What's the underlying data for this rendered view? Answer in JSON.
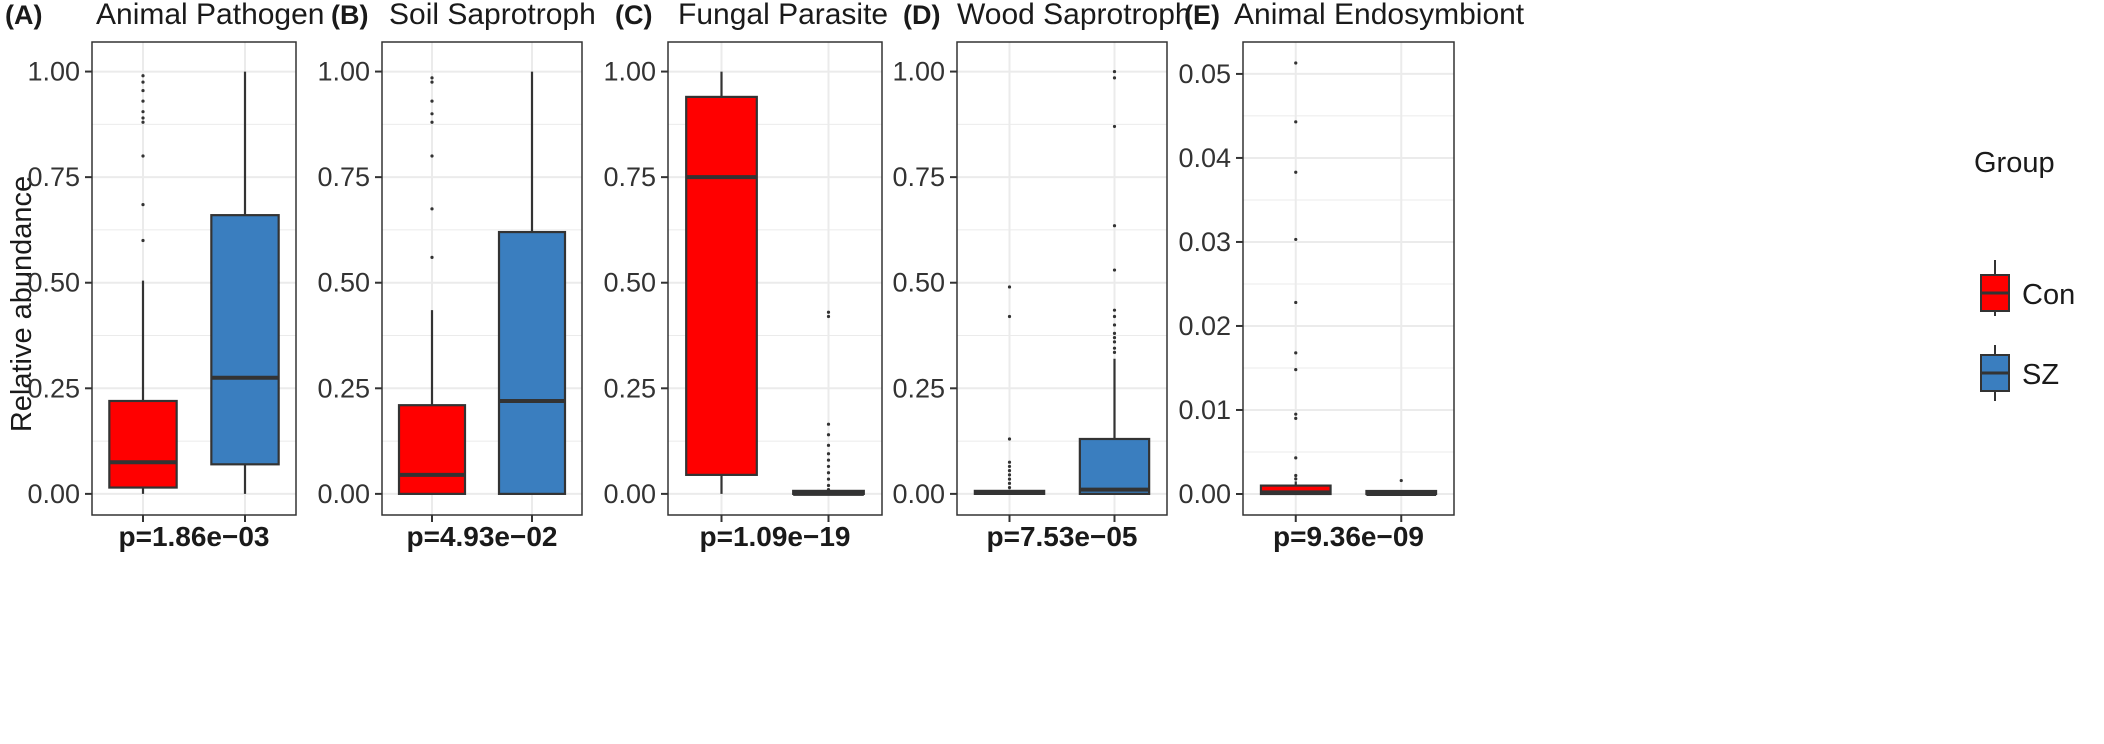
{
  "colors": {
    "con": "#ff0000",
    "sz": "#3a7ebf",
    "outline": "#333333",
    "grid": "#ebebeb",
    "frame": "#333333"
  },
  "y_axis_label": "Relative abundance",
  "legend": {
    "title": "Group",
    "items": [
      "Con",
      "SZ"
    ]
  },
  "chart_data": [
    {
      "type": "box",
      "tag": "(A)",
      "title": "Animal Pathogen",
      "pvalue": "p=1.86e−03",
      "ylim": [
        -0.05,
        1.07
      ],
      "ticks": [
        0,
        0.25,
        0.5,
        0.75,
        1.0
      ],
      "tick_labels": [
        "0.00",
        "0.25",
        "0.50",
        "0.75",
        "1.00"
      ],
      "groups": [
        {
          "name": "Con",
          "q1": 0.015,
          "median": 0.075,
          "q3": 0.22,
          "whisker_low": 0.0,
          "whisker_high": 0.505,
          "outliers": [
            0.6,
            0.685,
            0.8,
            0.88,
            0.89,
            0.905,
            0.93,
            0.955,
            0.975,
            0.99
          ]
        },
        {
          "name": "SZ",
          "q1": 0.07,
          "median": 0.275,
          "q3": 0.66,
          "whisker_low": 0.0,
          "whisker_high": 1.0,
          "outliers": []
        }
      ]
    },
    {
      "type": "box",
      "tag": "(B)",
      "title": "Soil Saprotroph",
      "pvalue": "p=4.93e−02",
      "ylim": [
        -0.05,
        1.07
      ],
      "ticks": [
        0,
        0.25,
        0.5,
        0.75,
        1.0
      ],
      "tick_labels": [
        "0.00",
        "0.25",
        "0.50",
        "0.75",
        "1.00"
      ],
      "groups": [
        {
          "name": "Con",
          "q1": 0.0,
          "median": 0.045,
          "q3": 0.21,
          "whisker_low": 0.0,
          "whisker_high": 0.435,
          "outliers": [
            0.56,
            0.675,
            0.8,
            0.88,
            0.9,
            0.93,
            0.975,
            0.985
          ]
        },
        {
          "name": "SZ",
          "q1": 0.0,
          "median": 0.22,
          "q3": 0.62,
          "whisker_low": 0.0,
          "whisker_high": 1.0,
          "outliers": []
        }
      ]
    },
    {
      "type": "box",
      "tag": "(C)",
      "title": "Fungal Parasite",
      "pvalue": "p=1.09e−19",
      "ylim": [
        -0.05,
        1.07
      ],
      "ticks": [
        0,
        0.25,
        0.5,
        0.75,
        1.0
      ],
      "tick_labels": [
        "0.00",
        "0.25",
        "0.50",
        "0.75",
        "1.00"
      ],
      "groups": [
        {
          "name": "Con",
          "q1": 0.045,
          "median": 0.75,
          "q3": 0.94,
          "whisker_low": 0.0,
          "whisker_high": 1.0,
          "outliers": []
        },
        {
          "name": "SZ",
          "q1": 0.0,
          "median": 0.0,
          "q3": 0.002,
          "whisker_low": 0.0,
          "whisker_high": 0.004,
          "outliers": [
            0.01,
            0.02,
            0.035,
            0.05,
            0.065,
            0.08,
            0.095,
            0.115,
            0.14,
            0.165,
            0.42,
            0.43
          ]
        }
      ]
    },
    {
      "type": "box",
      "tag": "(D)",
      "title": "Wood Saprotroph",
      "pvalue": "p=7.53e−05",
      "ylim": [
        -0.05,
        1.07
      ],
      "ticks": [
        0,
        0.25,
        0.5,
        0.75,
        1.0
      ],
      "tick_labels": [
        "0.00",
        "0.25",
        "0.50",
        "0.75",
        "1.00"
      ],
      "groups": [
        {
          "name": "Con",
          "q1": 0.0,
          "median": 0.002,
          "q3": 0.005,
          "whisker_low": 0.0,
          "whisker_high": 0.01,
          "outliers": [
            0.015,
            0.025,
            0.035,
            0.045,
            0.055,
            0.065,
            0.075,
            0.13,
            0.42,
            0.49
          ]
        },
        {
          "name": "SZ",
          "q1": 0.0,
          "median": 0.01,
          "q3": 0.13,
          "whisker_low": 0.0,
          "whisker_high": 0.32,
          "outliers": [
            0.335,
            0.345,
            0.36,
            0.37,
            0.38,
            0.4,
            0.42,
            0.435,
            0.53,
            0.635,
            0.87,
            0.985,
            1.0
          ]
        }
      ]
    },
    {
      "type": "box",
      "tag": "(E)",
      "title": "Animal Endosymbiont",
      "pvalue": "p=9.36e−09",
      "ylim": [
        -0.0025,
        0.0538
      ],
      "ticks": [
        0,
        0.01,
        0.02,
        0.03,
        0.04,
        0.05
      ],
      "tick_labels": [
        "0.00",
        "0.01",
        "0.02",
        "0.03",
        "0.04",
        "0.05"
      ],
      "groups": [
        {
          "name": "Con",
          "q1": 0.0,
          "median": 0.0002,
          "q3": 0.001,
          "whisker_low": 0.0,
          "whisker_high": 0.0015,
          "outliers": [
            0.0018,
            0.0022,
            0.0043,
            0.009,
            0.0095,
            0.0148,
            0.0168,
            0.0228,
            0.0303,
            0.0383,
            0.0443,
            0.0513
          ]
        },
        {
          "name": "SZ",
          "q1": 0.0,
          "median": 0.0,
          "q3": 0.0001,
          "whisker_low": 0.0,
          "whisker_high": 0.0002,
          "outliers": [
            0.0016
          ]
        }
      ]
    }
  ]
}
